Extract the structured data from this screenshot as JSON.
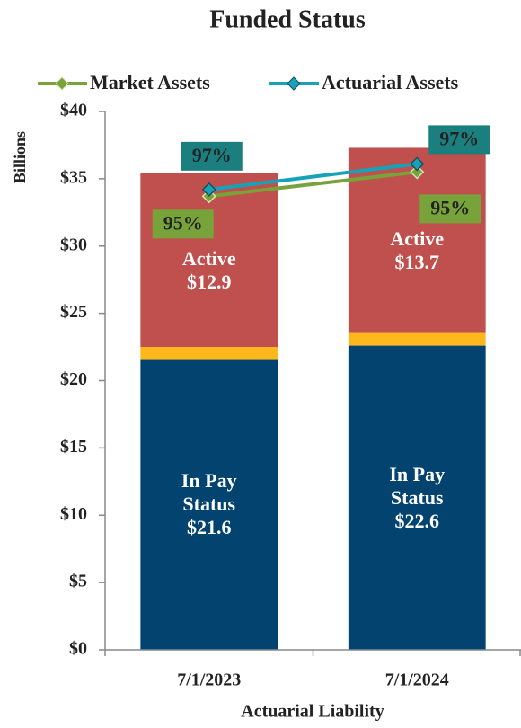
{
  "chart_data": {
    "type": "stacked_bar_line",
    "title": "Funded Status",
    "x_label": "Actuarial Liability",
    "y_label": "Billions",
    "categories": [
      "7/1/2023",
      "7/1/2024"
    ],
    "ylim": [
      0,
      40
    ],
    "yticks": [
      {
        "value": 0,
        "label": "$0"
      },
      {
        "value": 5,
        "label": "$5"
      },
      {
        "value": 10,
        "label": "$10"
      },
      {
        "value": 15,
        "label": "$15"
      },
      {
        "value": 20,
        "label": "$20"
      },
      {
        "value": 25,
        "label": "$25"
      },
      {
        "value": 30,
        "label": "$30"
      },
      {
        "value": 35,
        "label": "$35"
      },
      {
        "value": 40,
        "label": "$40"
      }
    ],
    "bar_series": [
      {
        "name": "In Pay Status",
        "color": "#03436f",
        "values": [
          21.6,
          22.6
        ],
        "value_labels": [
          "$21.6",
          "$22.6"
        ]
      },
      {
        "color": "#ffb81c",
        "values": [
          0.9,
          1.0
        ]
      },
      {
        "name": "Active",
        "color": "#c0504d",
        "values": [
          12.9,
          13.7
        ],
        "value_labels": [
          "$12.9",
          "$13.7"
        ]
      }
    ],
    "line_series": [
      {
        "name": "Market Assets",
        "color": "#77a33a",
        "values": [
          33.7,
          35.5
        ],
        "labels": [
          "95%",
          "95%"
        ]
      },
      {
        "name": "Actuarial Assets",
        "color": "#17a2b8",
        "values": [
          34.2,
          36.1
        ],
        "labels": [
          "97%",
          "97%"
        ],
        "label_color": "#1b7f80"
      }
    ],
    "legend": "top"
  }
}
